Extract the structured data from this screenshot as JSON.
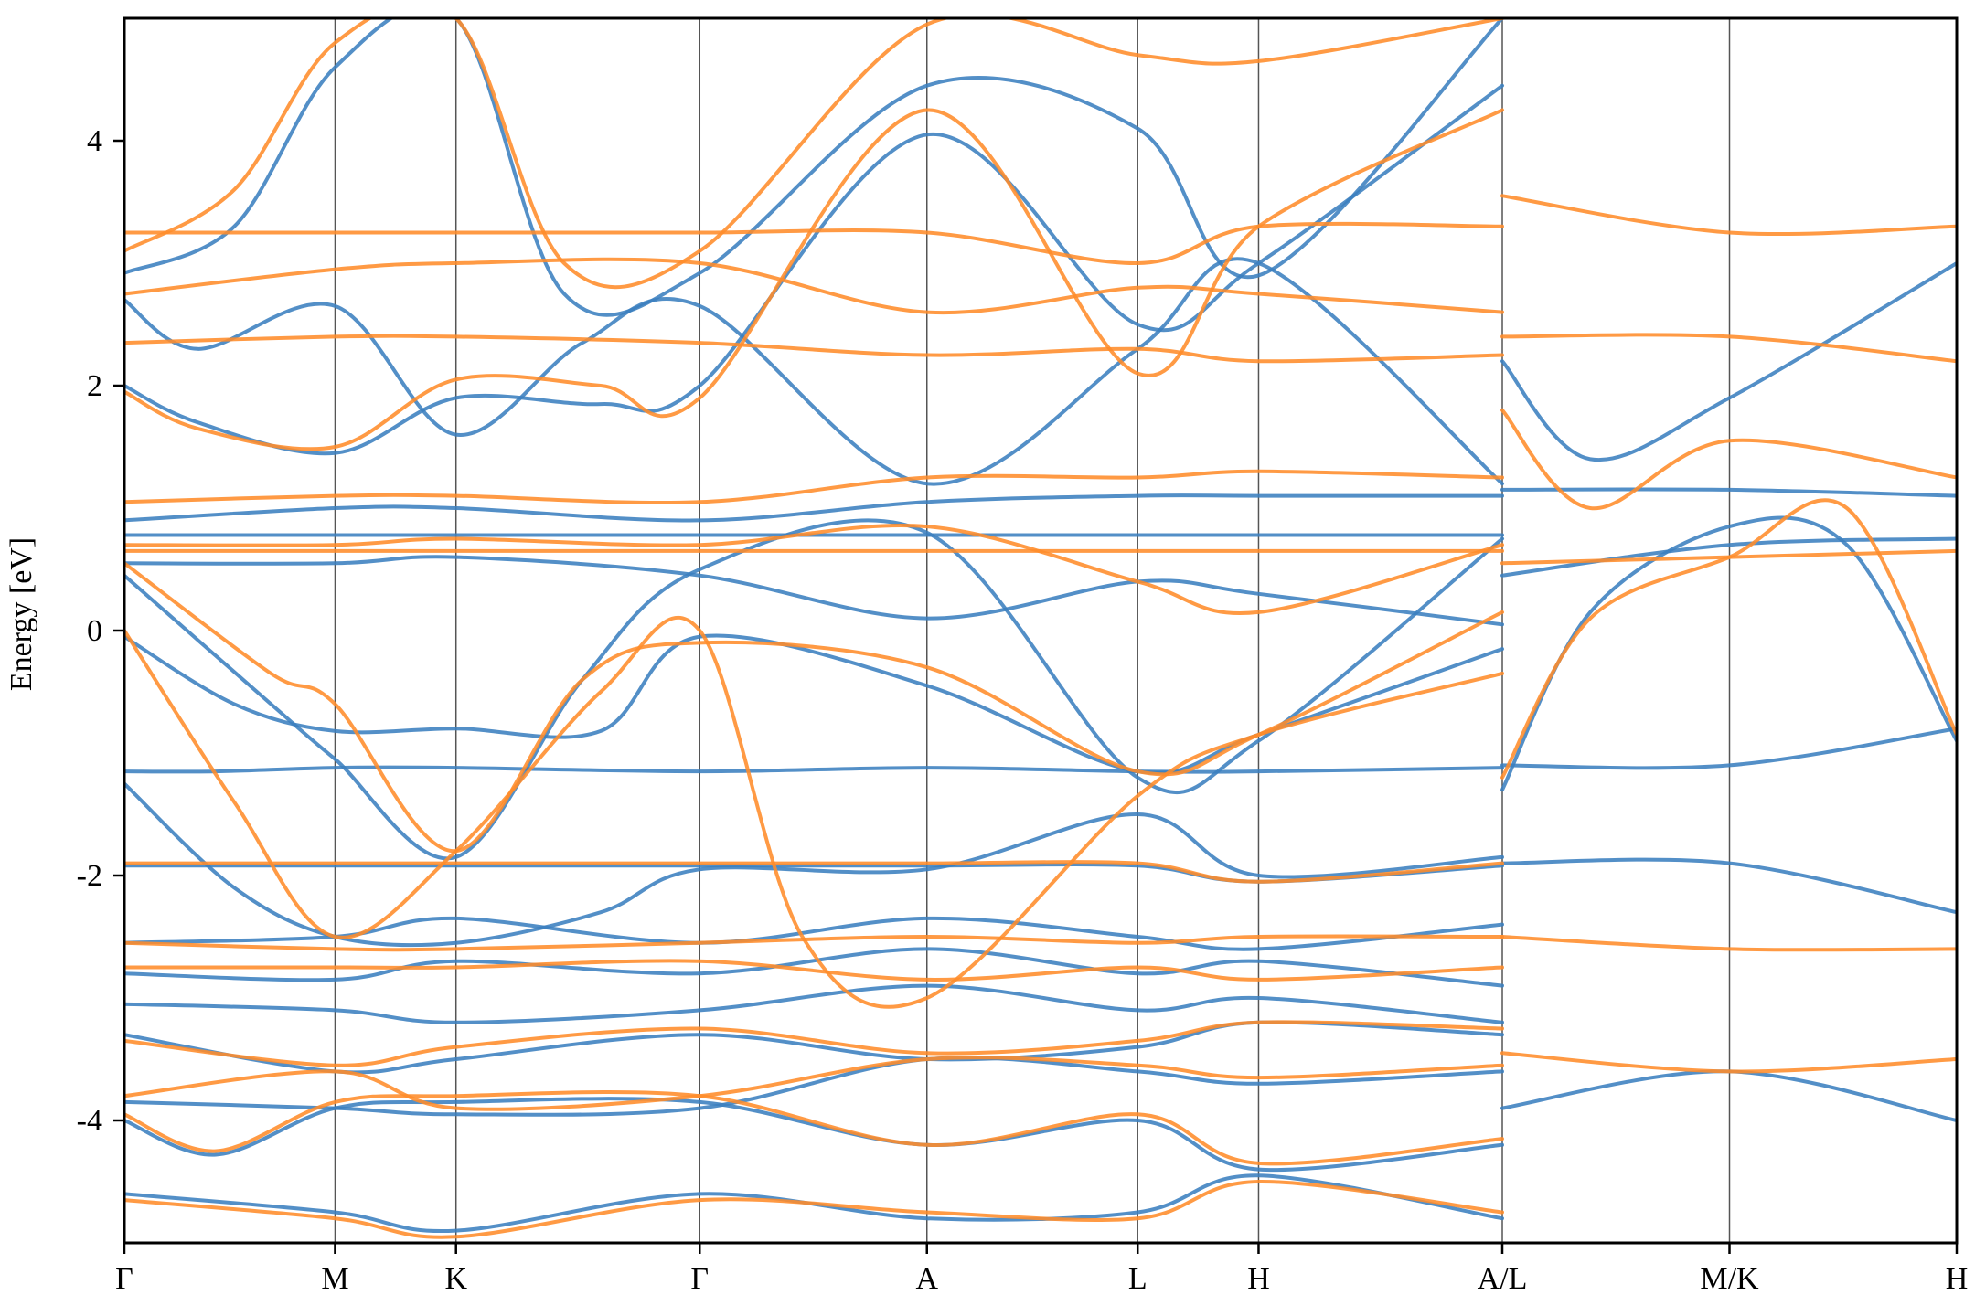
{
  "chart_data": {
    "type": "line",
    "title": "",
    "xlabel": "",
    "ylabel": "Energy [eV]",
    "ylim": [
      -5,
      5
    ],
    "yticks": [
      -4,
      -2,
      0,
      2,
      4
    ],
    "ytick_labels": [
      "-4",
      "-2",
      "0",
      "2",
      "4"
    ],
    "path_labels": [
      "Γ",
      "M",
      "K",
      "Γ",
      "A",
      "L",
      "H",
      "A/L",
      "M/K",
      "H"
    ],
    "path_positions": [
      0,
      0.115,
      0.181,
      0.314,
      0.438,
      0.553,
      0.619,
      0.752,
      0.876,
      1.0
    ],
    "grid": "vertical lines at high-symmetry points",
    "colors": {
      "series_blue": "#3b7fbf",
      "series_orange": "#ff8c2a"
    },
    "series": [
      {
        "color": "#3b7fbf",
        "bands": [
          {
            "x": [
              0,
              0.115,
              0.181,
              0.314,
              0.438,
              0.553,
              0.619,
              0.752
            ],
            "y": [
              -4.6,
              -4.75,
              -4.9,
              -4.6,
              -4.8,
              -4.75,
              -4.45,
              -4.8
            ]
          },
          {
            "x": [
              0,
              0.05,
              0.115,
              0.181,
              0.314,
              0.438,
              0.553,
              0.619,
              0.752
            ],
            "y": [
              -4.0,
              -4.28,
              -3.9,
              -3.85,
              -3.85,
              -4.2,
              -4.0,
              -4.4,
              -4.2
            ]
          },
          {
            "x": [
              0,
              0.115,
              0.181,
              0.314,
              0.438,
              0.553,
              0.619,
              0.752
            ],
            "y": [
              -3.85,
              -3.9,
              -3.95,
              -3.9,
              -3.5,
              -3.6,
              -3.7,
              -3.6
            ]
          },
          {
            "x": [
              0,
              0.115,
              0.181,
              0.314,
              0.438,
              0.553,
              0.619,
              0.752
            ],
            "y": [
              -3.3,
              -3.6,
              -3.5,
              -3.3,
              -3.5,
              -3.4,
              -3.2,
              -3.3
            ]
          },
          {
            "x": [
              0,
              0.115,
              0.181,
              0.314,
              0.438,
              0.553,
              0.619,
              0.752
            ],
            "y": [
              -3.05,
              -3.1,
              -3.2,
              -3.1,
              -2.9,
              -3.1,
              -3.0,
              -3.2
            ]
          },
          {
            "x": [
              0,
              0.115,
              0.181,
              0.314,
              0.438,
              0.553,
              0.619,
              0.752
            ],
            "y": [
              -2.8,
              -2.85,
              -2.7,
              -2.8,
              -2.6,
              -2.8,
              -2.7,
              -2.9
            ]
          },
          {
            "x": [
              0,
              0.115,
              0.181,
              0.314,
              0.438,
              0.553,
              0.619,
              0.752
            ],
            "y": [
              -2.55,
              -2.5,
              -2.35,
              -2.55,
              -2.35,
              -2.5,
              -2.6,
              -2.4
            ]
          },
          {
            "x": [
              0,
              0.115,
              0.181,
              0.314,
              0.438,
              0.553,
              0.619,
              0.752
            ],
            "y": [
              -1.92,
              -1.92,
              -1.92,
              -1.92,
              -1.92,
              -1.92,
              -2.05,
              -1.92
            ]
          },
          {
            "x": [
              0,
              0.05,
              0.115,
              0.181,
              0.314,
              0.438,
              0.553,
              0.619,
              0.752
            ],
            "y": [
              -1.15,
              -1.15,
              -1.12,
              -1.12,
              -1.15,
              -1.12,
              -1.15,
              -1.15,
              -1.12
            ]
          },
          {
            "x": [
              0,
              0.06,
              0.115,
              0.181,
              0.26,
              0.314,
              0.438,
              0.553,
              0.619,
              0.752
            ],
            "y": [
              -1.25,
              -2.1,
              -2.5,
              -2.55,
              -2.3,
              -1.95,
              -1.95,
              -1.5,
              -2.0,
              -1.85
            ]
          },
          {
            "x": [
              0,
              0.06,
              0.115,
              0.181,
              0.26,
              0.314,
              0.438,
              0.553,
              0.619,
              0.752
            ],
            "y": [
              -0.05,
              -0.6,
              -0.82,
              -0.8,
              -0.82,
              -0.05,
              -0.45,
              -1.15,
              -0.85,
              -0.15
            ]
          },
          {
            "x": [
              0,
              0.08,
              0.115,
              0.181,
              0.25,
              0.314,
              0.438,
              0.553,
              0.619,
              0.752
            ],
            "y": [
              0.45,
              -0.6,
              -1.05,
              -1.85,
              -0.4,
              0.5,
              0.8,
              -1.2,
              -0.9,
              0.75
            ]
          },
          {
            "x": [
              0,
              0.115,
              0.181,
              0.314,
              0.438,
              0.553,
              0.619,
              0.752
            ],
            "y": [
              0.78,
              0.78,
              0.78,
              0.78,
              0.78,
              0.78,
              0.78,
              0.78
            ]
          },
          {
            "x": [
              0,
              0.115,
              0.181,
              0.314,
              0.438,
              0.553,
              0.619,
              0.752
            ],
            "y": [
              0.9,
              1.0,
              1.0,
              0.9,
              1.05,
              1.1,
              1.1,
              1.1
            ]
          },
          {
            "x": [
              0,
              0.115,
              0.181,
              0.314,
              0.438,
              0.553,
              0.619,
              0.752
            ],
            "y": [
              0.55,
              0.55,
              0.6,
              0.45,
              0.1,
              0.4,
              0.3,
              0.05
            ]
          },
          {
            "x": [
              0,
              0.04,
              0.115,
              0.181,
              0.26,
              0.314,
              0.438,
              0.553,
              0.619,
              0.752
            ],
            "y": [
              2.0,
              1.7,
              1.45,
              1.9,
              1.85,
              2.0,
              4.05,
              2.5,
              3.0,
              4.45
            ]
          },
          {
            "x": [
              0,
              0.04,
              0.115,
              0.181,
              0.25,
              0.314,
              0.438,
              0.553,
              0.619,
              0.752
            ],
            "y": [
              2.7,
              2.3,
              2.65,
              1.6,
              2.35,
              2.65,
              1.2,
              2.3,
              3.0,
              1.2
            ]
          },
          {
            "x": [
              0,
              0.06,
              0.115,
              0.181,
              0.24,
              0.314,
              0.438,
              0.553,
              0.619,
              0.752
            ],
            "y": [
              2.92,
              3.3,
              4.6,
              5.0,
              2.75,
              2.92,
              4.45,
              4.1,
              2.9,
              5.0
            ]
          },
          {
            "x": [
              0.752,
              0.8,
              0.876,
              0.94,
              1.0
            ],
            "y": [
              -1.3,
              0.15,
              0.85,
              0.7,
              -0.9
            ]
          },
          {
            "x": [
              0.752,
              0.876,
              1.0
            ],
            "y": [
              -1.1,
              -1.1,
              -0.8
            ]
          },
          {
            "x": [
              0.752,
              0.876,
              1.0
            ],
            "y": [
              0.45,
              0.7,
              0.75
            ]
          },
          {
            "x": [
              0.752,
              0.876,
              1.0
            ],
            "y": [
              1.15,
              1.15,
              1.1
            ]
          },
          {
            "x": [
              0.752,
              0.8,
              0.876,
              1.0
            ],
            "y": [
              2.2,
              1.4,
              1.9,
              3.0
            ]
          },
          {
            "x": [
              0.752,
              0.876,
              1.0
            ],
            "y": [
              -1.9,
              -1.9,
              -2.3
            ]
          },
          {
            "x": [
              0.752,
              0.876,
              1.0
            ],
            "y": [
              -3.9,
              -3.6,
              -4.0
            ]
          }
        ]
      },
      {
        "color": "#ff8c2a",
        "bands": [
          {
            "x": [
              0,
              0.115,
              0.181,
              0.314,
              0.438,
              0.553,
              0.619,
              0.752
            ],
            "y": [
              -4.65,
              -4.8,
              -4.95,
              -4.65,
              -4.75,
              -4.8,
              -4.5,
              -4.75
            ]
          },
          {
            "x": [
              0,
              0.05,
              0.115,
              0.181,
              0.314,
              0.438,
              0.553,
              0.619,
              0.752
            ],
            "y": [
              -3.95,
              -4.25,
              -3.85,
              -3.8,
              -3.8,
              -4.2,
              -3.95,
              -4.35,
              -4.15
            ]
          },
          {
            "x": [
              0,
              0.115,
              0.181,
              0.314,
              0.438,
              0.553,
              0.619,
              0.752
            ],
            "y": [
              -3.8,
              -3.6,
              -3.9,
              -3.8,
              -3.5,
              -3.55,
              -3.65,
              -3.55
            ]
          },
          {
            "x": [
              0,
              0.115,
              0.181,
              0.314,
              0.438,
              0.553,
              0.619,
              0.752
            ],
            "y": [
              -3.35,
              -3.55,
              -3.4,
              -3.25,
              -3.45,
              -3.35,
              -3.2,
              -3.25
            ]
          },
          {
            "x": [
              0,
              0.115,
              0.181,
              0.314,
              0.438,
              0.553,
              0.619,
              0.752
            ],
            "y": [
              -2.55,
              -2.6,
              -2.6,
              -2.55,
              -2.5,
              -2.55,
              -2.5,
              -2.5
            ]
          },
          {
            "x": [
              0,
              0.115,
              0.181,
              0.314,
              0.438,
              0.553,
              0.619,
              0.752
            ],
            "y": [
              -2.75,
              -2.75,
              -2.75,
              -2.7,
              -2.85,
              -2.75,
              -2.85,
              -2.75
            ]
          },
          {
            "x": [
              0,
              0.115,
              0.181,
              0.314,
              0.438,
              0.553,
              0.619,
              0.752
            ],
            "y": [
              -1.9,
              -1.9,
              -1.9,
              -1.9,
              -1.9,
              -1.9,
              -2.05,
              -1.9
            ]
          },
          {
            "x": [
              0,
              0.06,
              0.115,
              0.181,
              0.26,
              0.314,
              0.37,
              0.438,
              0.553,
              0.619,
              0.752
            ],
            "y": [
              0.0,
              -1.4,
              -2.5,
              -1.8,
              -0.5,
              0.0,
              -2.5,
              -3.0,
              -1.35,
              -0.85,
              -0.35
            ]
          },
          {
            "x": [
              0,
              0.08,
              0.115,
              0.181,
              0.25,
              0.314,
              0.438,
              0.553,
              0.619,
              0.752
            ],
            "y": [
              0.55,
              -0.35,
              -0.6,
              -1.8,
              -0.4,
              -0.1,
              -0.3,
              -1.15,
              -0.85,
              0.15
            ]
          },
          {
            "x": [
              0,
              0.115,
              0.181,
              0.314,
              0.438,
              0.553,
              0.619,
              0.752
            ],
            "y": [
              0.65,
              0.65,
              0.65,
              0.65,
              0.65,
              0.65,
              0.65,
              0.65
            ]
          },
          {
            "x": [
              0,
              0.115,
              0.181,
              0.314,
              0.438,
              0.553,
              0.619,
              0.752
            ],
            "y": [
              1.05,
              1.1,
              1.1,
              1.05,
              1.25,
              1.25,
              1.3,
              1.25
            ]
          },
          {
            "x": [
              0,
              0.115,
              0.181,
              0.314,
              0.438,
              0.553,
              0.619,
              0.752
            ],
            "y": [
              0.7,
              0.7,
              0.75,
              0.7,
              0.85,
              0.4,
              0.15,
              0.7
            ]
          },
          {
            "x": [
              0,
              0.115,
              0.181,
              0.314,
              0.438,
              0.553,
              0.619,
              0.752
            ],
            "y": [
              2.35,
              2.4,
              2.4,
              2.35,
              2.25,
              2.3,
              2.2,
              2.25
            ]
          },
          {
            "x": [
              0,
              0.04,
              0.115,
              0.181,
              0.26,
              0.314,
              0.438,
              0.553,
              0.619,
              0.752
            ],
            "y": [
              1.95,
              1.65,
              1.5,
              2.05,
              2.0,
              1.9,
              4.25,
              2.1,
              3.3,
              4.25
            ]
          },
          {
            "x": [
              0,
              0.115,
              0.181,
              0.314,
              0.438,
              0.553,
              0.619,
              0.752
            ],
            "y": [
              3.25,
              3.25,
              3.25,
              3.25,
              3.25,
              3.0,
              3.3,
              3.3
            ]
          },
          {
            "x": [
              0,
              0.06,
              0.115,
              0.181,
              0.24,
              0.314,
              0.438,
              0.553,
              0.619,
              0.752
            ],
            "y": [
              3.1,
              3.6,
              4.8,
              5.0,
              3.0,
              3.1,
              4.95,
              4.7,
              4.65,
              5.0
            ]
          },
          {
            "x": [
              0,
              0.115,
              0.181,
              0.314,
              0.438,
              0.553,
              0.619,
              0.752
            ],
            "y": [
              2.75,
              2.95,
              3.0,
              3.0,
              2.6,
              2.8,
              2.75,
              2.6
            ]
          },
          {
            "x": [
              0.752,
              0.8,
              0.876,
              0.94,
              1.0
            ],
            "y": [
              -1.2,
              0.1,
              0.6,
              1.0,
              -0.85
            ]
          },
          {
            "x": [
              0.752,
              0.876,
              1.0
            ],
            "y": [
              0.55,
              0.6,
              0.65
            ]
          },
          {
            "x": [
              0.752,
              0.8,
              0.876,
              1.0
            ],
            "y": [
              1.8,
              1.0,
              1.55,
              1.25
            ]
          },
          {
            "x": [
              0.752,
              0.876,
              1.0
            ],
            "y": [
              2.4,
              2.4,
              2.2
            ]
          },
          {
            "x": [
              0.752,
              0.876,
              1.0
            ],
            "y": [
              3.55,
              3.25,
              3.3
            ]
          },
          {
            "x": [
              0.752,
              0.876,
              1.0
            ],
            "y": [
              -2.5,
              -2.6,
              -2.6
            ]
          },
          {
            "x": [
              0.752,
              0.876,
              1.0
            ],
            "y": [
              -3.45,
              -3.6,
              -3.5
            ]
          }
        ]
      }
    ]
  }
}
